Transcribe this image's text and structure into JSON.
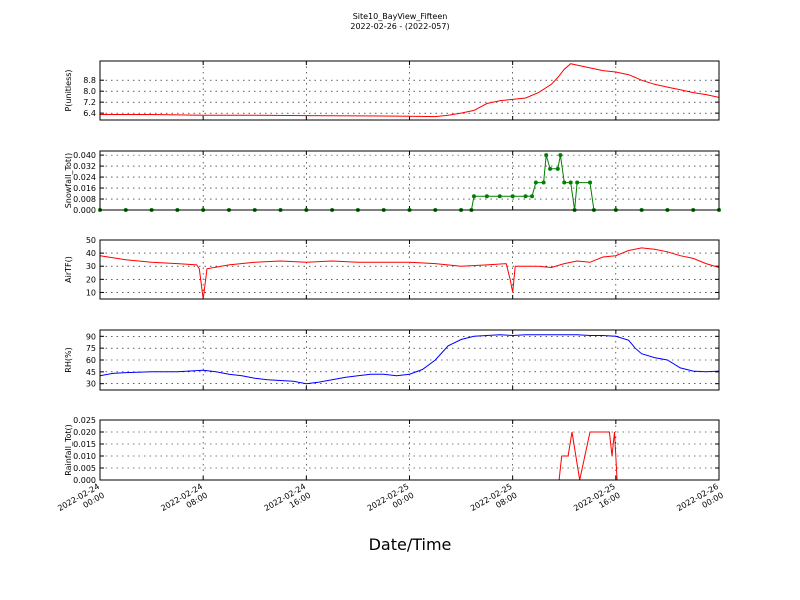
{
  "title": "Site10_BayView_Fifteen",
  "subtitle": "2022-02-26 - (2022-057)",
  "xlabel": "Date/Time",
  "chart_data": {
    "type": "line",
    "x_ticks": [
      {
        "line1": "2022-02-24",
        "line2": "00:00",
        "hours": 0
      },
      {
        "line1": "2022-02-24",
        "line2": "08:00",
        "hours": 8
      },
      {
        "line1": "2022-02-24",
        "line2": "16:00",
        "hours": 16
      },
      {
        "line1": "2022-02-25",
        "line2": "00:00",
        "hours": 24
      },
      {
        "line1": "2022-02-25",
        "line2": "08:00",
        "hours": 32
      },
      {
        "line1": "2022-02-25",
        "line2": "16:00",
        "hours": 40
      },
      {
        "line1": "2022-02-26",
        "line2": "00:00",
        "hours": 48
      }
    ],
    "xlim_hours": [
      0,
      48
    ],
    "grid": true,
    "panels": [
      {
        "id": "pressure",
        "ylabel": "P(unitless)",
        "color": "#ff0000",
        "markers": false,
        "ylim": [
          5.9,
          10.2
        ],
        "yticks": [
          "6.4",
          "7.2",
          "8.0",
          "8.8"
        ],
        "ytick_values": [
          6.4,
          7.2,
          8.0,
          8.8
        ],
        "points": [
          [
            0,
            6.3
          ],
          [
            4,
            6.3
          ],
          [
            8,
            6.25
          ],
          [
            12,
            6.25
          ],
          [
            16,
            6.22
          ],
          [
            20,
            6.2
          ],
          [
            24,
            6.18
          ],
          [
            26,
            6.15
          ],
          [
            27,
            6.25
          ],
          [
            28,
            6.4
          ],
          [
            29,
            6.6
          ],
          [
            30,
            7.1
          ],
          [
            31,
            7.3
          ],
          [
            32,
            7.4
          ],
          [
            33,
            7.5
          ],
          [
            34,
            7.9
          ],
          [
            35,
            8.5
          ],
          [
            35.5,
            9.0
          ],
          [
            36,
            9.6
          ],
          [
            36.5,
            10.0
          ],
          [
            37,
            9.9
          ],
          [
            38,
            9.7
          ],
          [
            39,
            9.5
          ],
          [
            40,
            9.4
          ],
          [
            41,
            9.2
          ],
          [
            42,
            8.8
          ],
          [
            43,
            8.5
          ],
          [
            44,
            8.3
          ],
          [
            45,
            8.1
          ],
          [
            46,
            7.9
          ],
          [
            47,
            7.75
          ],
          [
            48,
            7.55
          ]
        ]
      },
      {
        "id": "snowfall",
        "ylabel": "Snowfall_Tot()",
        "color": "#008000",
        "markers": true,
        "ylim": [
          0,
          0.043
        ],
        "yticks": [
          "0.000",
          "0.008",
          "0.016",
          "0.024",
          "0.032",
          "0.040"
        ],
        "ytick_values": [
          0,
          0.008,
          0.016,
          0.024,
          0.032,
          0.04
        ],
        "points": [
          [
            0,
            0
          ],
          [
            2,
            0
          ],
          [
            4,
            0
          ],
          [
            6,
            0
          ],
          [
            8,
            0
          ],
          [
            10,
            0
          ],
          [
            12,
            0
          ],
          [
            14,
            0
          ],
          [
            16,
            0
          ],
          [
            18,
            0
          ],
          [
            20,
            0
          ],
          [
            22,
            0
          ],
          [
            24,
            0
          ],
          [
            26,
            0
          ],
          [
            28,
            0
          ],
          [
            28.8,
            0
          ],
          [
            29,
            0.01
          ],
          [
            30,
            0.01
          ],
          [
            31,
            0.01
          ],
          [
            32,
            0.01
          ],
          [
            33,
            0.01
          ],
          [
            33.5,
            0.01
          ],
          [
            33.8,
            0.02
          ],
          [
            34.4,
            0.02
          ],
          [
            34.6,
            0.04
          ],
          [
            34.9,
            0.03
          ],
          [
            35.5,
            0.03
          ],
          [
            35.7,
            0.04
          ],
          [
            36,
            0.02
          ],
          [
            36.5,
            0.02
          ],
          [
            36.8,
            0
          ],
          [
            37,
            0.02
          ],
          [
            38,
            0.02
          ],
          [
            38.3,
            0
          ],
          [
            40,
            0
          ],
          [
            42,
            0
          ],
          [
            44,
            0
          ],
          [
            46,
            0
          ],
          [
            48,
            0
          ]
        ]
      },
      {
        "id": "airtemp",
        "ylabel": "AirTF()",
        "color": "#ff0000",
        "markers": false,
        "ylim": [
          5,
          50
        ],
        "yticks": [
          "10",
          "20",
          "30",
          "40",
          "50"
        ],
        "ytick_values": [
          10,
          20,
          30,
          40,
          50
        ],
        "points": [
          [
            0,
            38
          ],
          [
            2,
            35
          ],
          [
            4,
            33
          ],
          [
            6,
            32
          ],
          [
            7.5,
            31
          ],
          [
            7.7,
            28
          ],
          [
            8,
            5
          ],
          [
            8.3,
            28
          ],
          [
            10,
            31
          ],
          [
            12,
            33
          ],
          [
            14,
            34
          ],
          [
            16,
            33
          ],
          [
            18,
            34
          ],
          [
            20,
            33
          ],
          [
            22,
            33
          ],
          [
            24,
            33
          ],
          [
            26,
            32
          ],
          [
            28,
            30
          ],
          [
            30,
            31
          ],
          [
            31.5,
            32
          ],
          [
            31.8,
            20
          ],
          [
            32,
            10
          ],
          [
            32.2,
            30
          ],
          [
            34,
            30
          ],
          [
            35,
            29
          ],
          [
            36,
            32
          ],
          [
            37,
            34
          ],
          [
            38,
            33
          ],
          [
            39,
            37
          ],
          [
            40,
            38
          ],
          [
            41,
            42
          ],
          [
            42,
            44
          ],
          [
            43,
            43
          ],
          [
            44,
            41
          ],
          [
            45,
            38
          ],
          [
            46,
            36
          ],
          [
            47,
            32
          ],
          [
            48,
            29
          ]
        ]
      },
      {
        "id": "rh",
        "ylabel": "RH(%)",
        "color": "#0000ff",
        "markers": false,
        "ylim": [
          22,
          98
        ],
        "yticks": [
          "30",
          "45",
          "60",
          "75",
          "90"
        ],
        "ytick_values": [
          30,
          45,
          60,
          75,
          90
        ],
        "points": [
          [
            0,
            40
          ],
          [
            1,
            43
          ],
          [
            2,
            44
          ],
          [
            4,
            45
          ],
          [
            6,
            45
          ],
          [
            8,
            47
          ],
          [
            9,
            45
          ],
          [
            10,
            42
          ],
          [
            11,
            40
          ],
          [
            12,
            37
          ],
          [
            13,
            35
          ],
          [
            14,
            34
          ],
          [
            15,
            33
          ],
          [
            16,
            30
          ],
          [
            17,
            32
          ],
          [
            18,
            35
          ],
          [
            19,
            38
          ],
          [
            20,
            40
          ],
          [
            21,
            42
          ],
          [
            22,
            42
          ],
          [
            23,
            40
          ],
          [
            24,
            42
          ],
          [
            25,
            48
          ],
          [
            26,
            60
          ],
          [
            27,
            78
          ],
          [
            28,
            86
          ],
          [
            29,
            90
          ],
          [
            30,
            91
          ],
          [
            31,
            92
          ],
          [
            32,
            91
          ],
          [
            33,
            92
          ],
          [
            34,
            92
          ],
          [
            35,
            92
          ],
          [
            36,
            92
          ],
          [
            37,
            92
          ],
          [
            38,
            91
          ],
          [
            39,
            91
          ],
          [
            40,
            90
          ],
          [
            41,
            85
          ],
          [
            41.5,
            75
          ],
          [
            42,
            68
          ],
          [
            43,
            63
          ],
          [
            44,
            60
          ],
          [
            45,
            50
          ],
          [
            46,
            46
          ],
          [
            47,
            45
          ],
          [
            48,
            46
          ]
        ]
      },
      {
        "id": "rainfall",
        "ylabel": "Rainfall_Tot()",
        "color": "#ff0000",
        "markers": false,
        "ylim": [
          0,
          0.025
        ],
        "yticks": [
          "0.000",
          "0.005",
          "0.010",
          "0.015",
          "0.020",
          "0.025"
        ],
        "ytick_values": [
          0,
          0.005,
          0.01,
          0.015,
          0.02,
          0.025
        ],
        "points": [
          [
            0,
            0
          ],
          [
            10,
            0
          ],
          [
            20,
            0
          ],
          [
            30,
            0
          ],
          [
            35.6,
            0
          ],
          [
            35.8,
            0.01
          ],
          [
            36.3,
            0.01
          ],
          [
            36.6,
            0.02
          ],
          [
            37.2,
            0
          ],
          [
            38,
            0.02
          ],
          [
            39,
            0.02
          ],
          [
            39.5,
            0.02
          ],
          [
            39.7,
            0.01
          ],
          [
            39.9,
            0.02
          ],
          [
            40.1,
            0
          ],
          [
            44,
            0
          ],
          [
            48,
            0
          ]
        ]
      }
    ]
  }
}
